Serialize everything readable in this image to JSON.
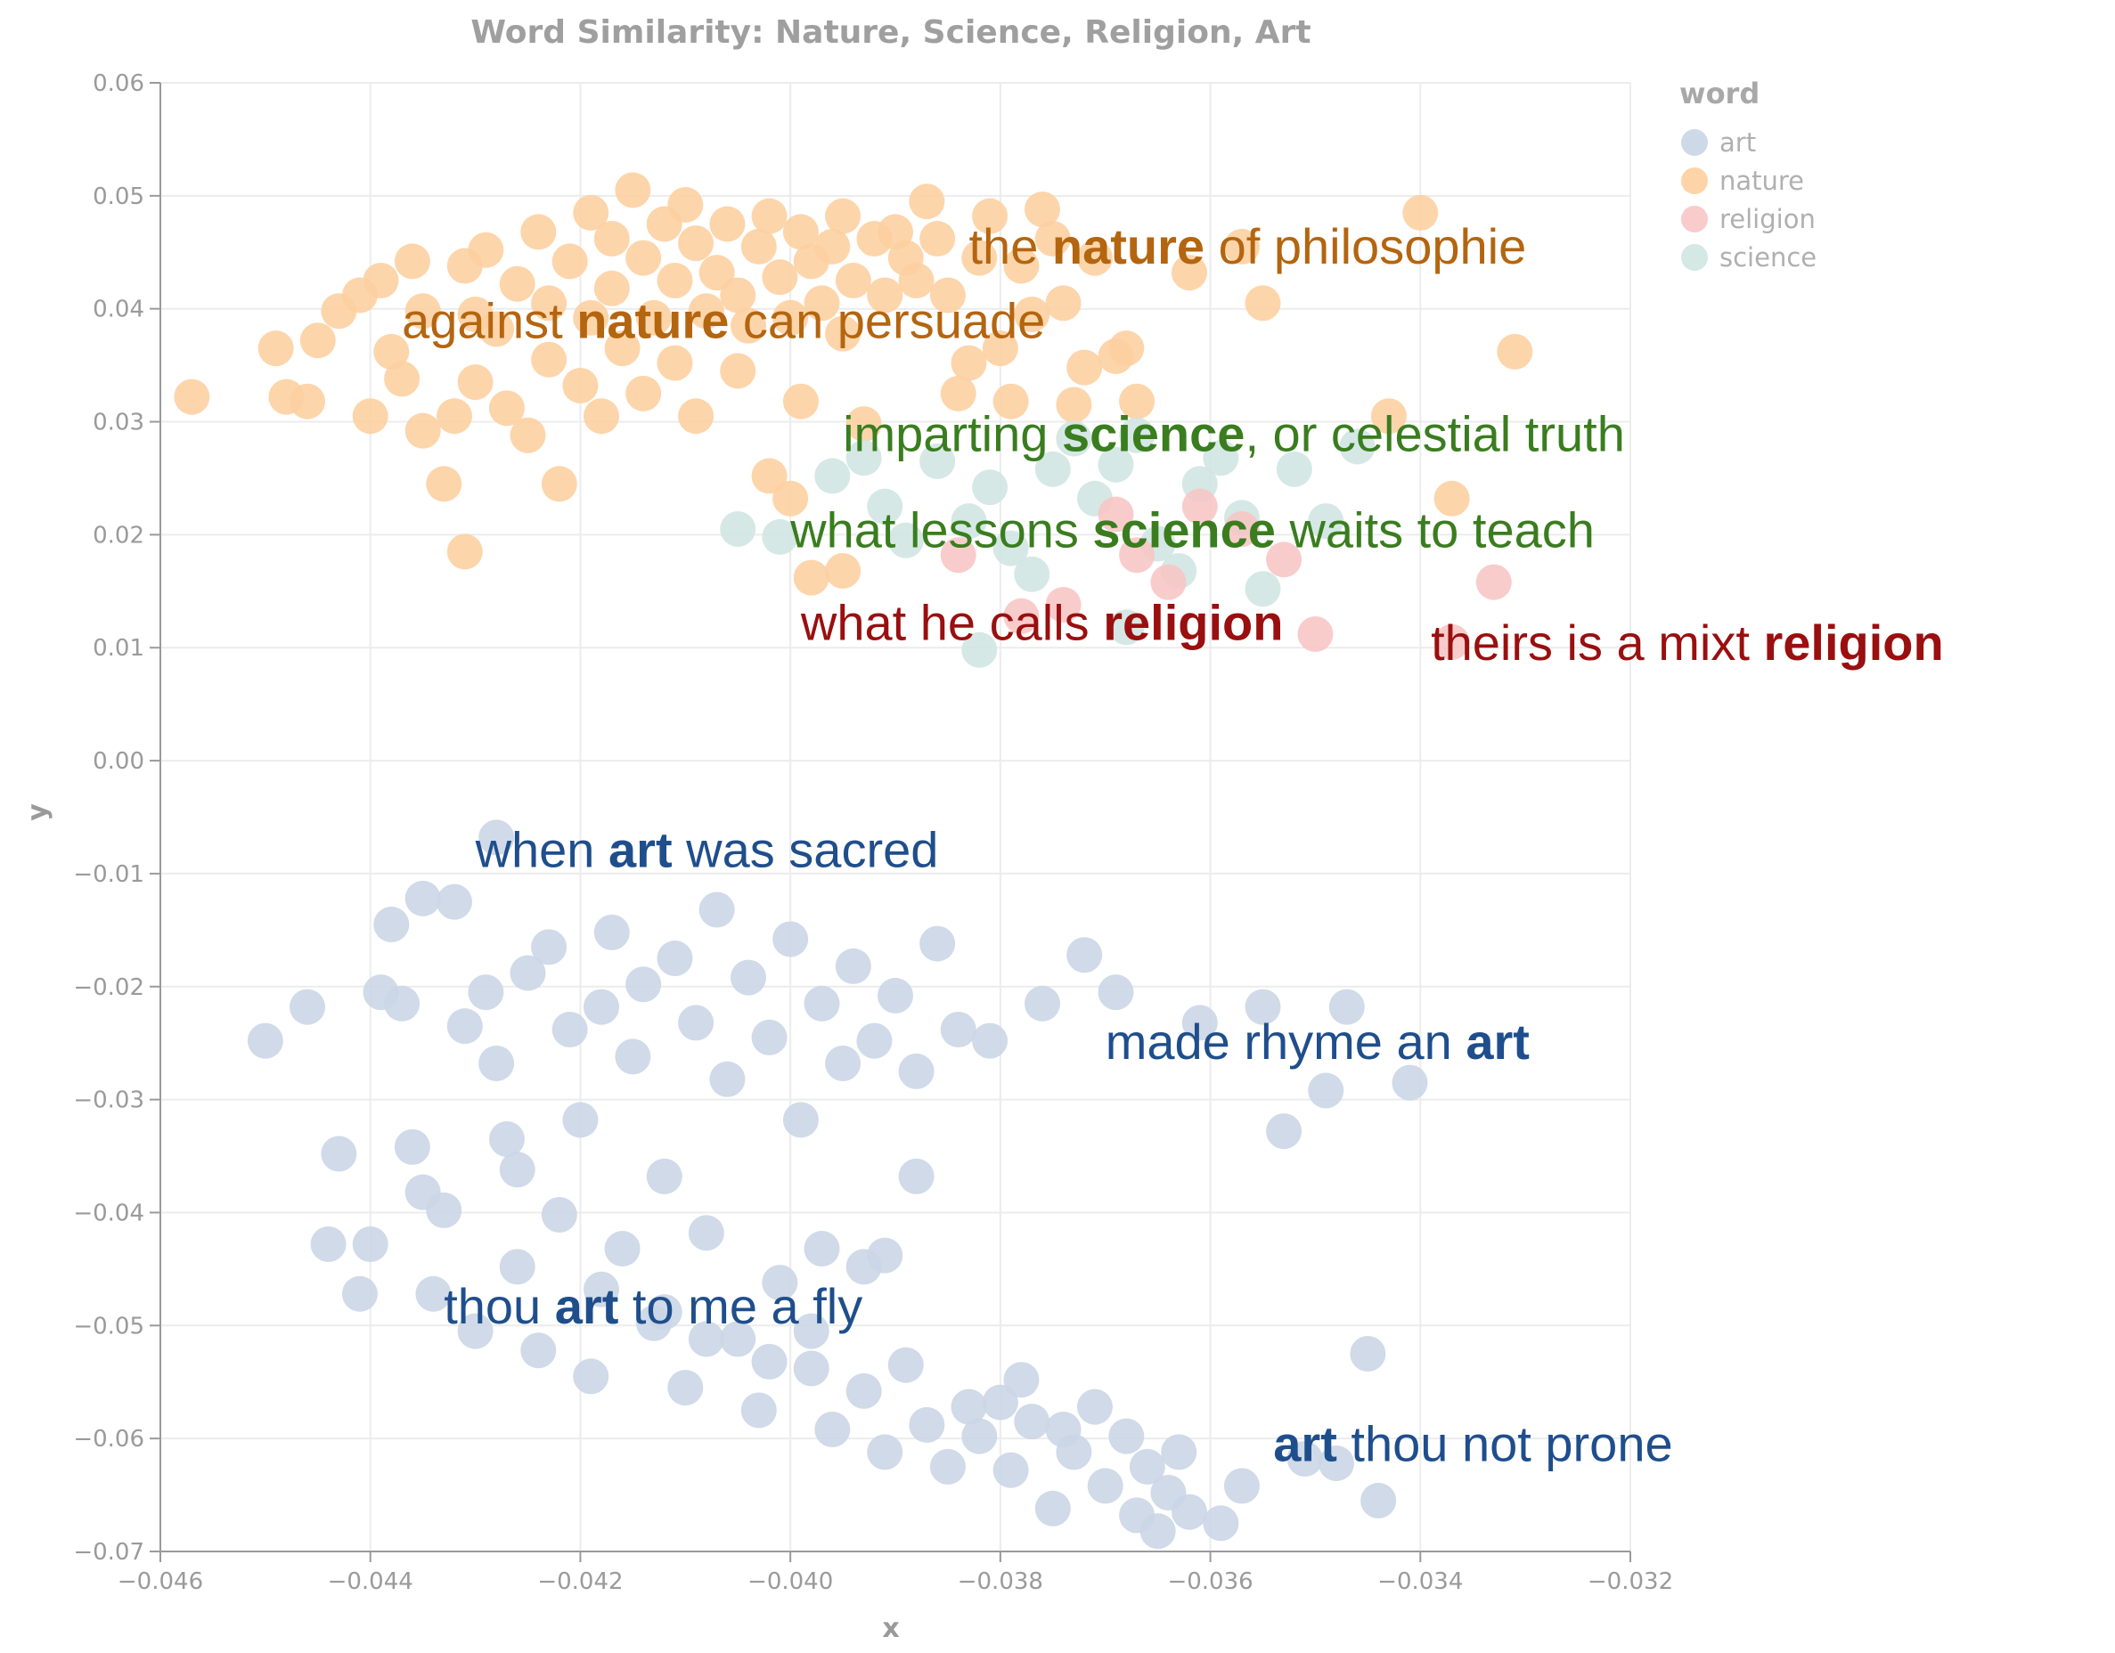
{
  "chart_data": {
    "type": "scatter",
    "title": "Word Similarity: Nature, Science, Religion, Art",
    "xlabel": "x",
    "ylabel": "y",
    "xlim": [
      -0.046,
      -0.032
    ],
    "ylim": [
      -0.07,
      0.06
    ],
    "x_ticks": [
      "−0.046",
      "−0.044",
      "−0.042",
      "−0.040",
      "−0.038",
      "−0.036",
      "−0.034",
      "−0.032"
    ],
    "y_ticks": [
      "0.06",
      "0.05",
      "0.04",
      "0.03",
      "0.02",
      "0.01",
      "0.00",
      "−0.01",
      "−0.02",
      "−0.03",
      "−0.04",
      "−0.05",
      "−0.06",
      "−0.07"
    ],
    "grid": true,
    "legend": {
      "title": "word",
      "placement": "top-right",
      "entries": [
        "art",
        "nature",
        "religion",
        "science"
      ]
    },
    "colors": {
      "art": "#c9d5e5",
      "nature": "#fdcf9f",
      "religion": "#f8c5c5",
      "science": "#cfe5e1",
      "art_text": "#1f4e8c",
      "nature_text": "#b4650f",
      "religion_text": "#9a0f0f",
      "science_text": "#3a7d1f"
    },
    "series": [
      {
        "name": "nature",
        "points": [
          [
            -0.0457,
            0.0322
          ],
          [
            -0.0449,
            0.0365
          ],
          [
            -0.0448,
            0.0322
          ],
          [
            -0.0446,
            0.0318
          ],
          [
            -0.0445,
            0.0372
          ],
          [
            -0.0443,
            0.0398
          ],
          [
            -0.0441,
            0.0412
          ],
          [
            -0.044,
            0.0305
          ],
          [
            -0.0439,
            0.0425
          ],
          [
            -0.0438,
            0.0362
          ],
          [
            -0.0437,
            0.0338
          ],
          [
            -0.0436,
            0.0442
          ],
          [
            -0.0435,
            0.0292
          ],
          [
            -0.0435,
            0.0398
          ],
          [
            -0.0433,
            0.0245
          ],
          [
            -0.0432,
            0.0305
          ],
          [
            -0.0431,
            0.0438
          ],
          [
            -0.043,
            0.0395
          ],
          [
            -0.043,
            0.0335
          ],
          [
            -0.0429,
            0.0452
          ],
          [
            -0.0428,
            0.0382
          ],
          [
            -0.0427,
            0.0312
          ],
          [
            -0.0426,
            0.0422
          ],
          [
            -0.0425,
            0.0288
          ],
          [
            -0.0424,
            0.0468
          ],
          [
            -0.0423,
            0.0405
          ],
          [
            -0.0423,
            0.0355
          ],
          [
            -0.0422,
            0.0245
          ],
          [
            -0.0421,
            0.0442
          ],
          [
            -0.042,
            0.0332
          ],
          [
            -0.0419,
            0.0485
          ],
          [
            -0.0419,
            0.0392
          ],
          [
            -0.0418,
            0.0305
          ],
          [
            -0.0417,
            0.0462
          ],
          [
            -0.0417,
            0.0418
          ],
          [
            -0.0416,
            0.0365
          ],
          [
            -0.0415,
            0.0505
          ],
          [
            -0.0414,
            0.0445
          ],
          [
            -0.0414,
            0.0325
          ],
          [
            -0.0413,
            0.0392
          ],
          [
            -0.0412,
            0.0475
          ],
          [
            -0.0411,
            0.0352
          ],
          [
            -0.0411,
            0.0425
          ],
          [
            -0.041,
            0.0492
          ],
          [
            -0.0409,
            0.0305
          ],
          [
            -0.0409,
            0.0458
          ],
          [
            -0.0408,
            0.0398
          ],
          [
            -0.0407,
            0.0432
          ],
          [
            -0.0406,
            0.0475
          ],
          [
            -0.0405,
            0.0345
          ],
          [
            -0.0405,
            0.0412
          ],
          [
            -0.0404,
            0.0385
          ],
          [
            -0.0403,
            0.0455
          ],
          [
            -0.0402,
            0.0482
          ],
          [
            -0.0402,
            0.0252
          ],
          [
            -0.0401,
            0.0428
          ],
          [
            -0.04,
            0.0392
          ],
          [
            -0.0399,
            0.0468
          ],
          [
            -0.0399,
            0.0318
          ],
          [
            -0.0398,
            0.0442
          ],
          [
            -0.0397,
            0.0405
          ],
          [
            -0.0396,
            0.0455
          ],
          [
            -0.0395,
            0.0482
          ],
          [
            -0.0395,
            0.0378
          ],
          [
            -0.0394,
            0.0425
          ],
          [
            -0.0393,
            0.0298
          ],
          [
            -0.0392,
            0.0462
          ],
          [
            -0.0391,
            0.0412
          ],
          [
            -0.039,
            0.0468
          ],
          [
            -0.0389,
            0.0445
          ],
          [
            -0.0388,
            0.0425
          ],
          [
            -0.0387,
            0.0495
          ],
          [
            -0.0386,
            0.0462
          ],
          [
            -0.0385,
            0.0412
          ],
          [
            -0.0384,
            0.0325
          ],
          [
            -0.0383,
            0.0352
          ],
          [
            -0.0382,
            0.0445
          ],
          [
            -0.0381,
            0.0482
          ],
          [
            -0.038,
            0.0365
          ],
          [
            -0.0379,
            0.0318
          ],
          [
            -0.0378,
            0.0438
          ],
          [
            -0.0377,
            0.0395
          ],
          [
            -0.0376,
            0.0488
          ],
          [
            -0.0375,
            0.0462
          ],
          [
            -0.0374,
            0.0405
          ],
          [
            -0.0373,
            0.0315
          ],
          [
            -0.0372,
            0.0348
          ],
          [
            -0.0371,
            0.0445
          ],
          [
            -0.0369,
            0.0358
          ],
          [
            -0.0368,
            0.0365
          ],
          [
            -0.0367,
            0.0318
          ],
          [
            -0.0362,
            0.0432
          ],
          [
            -0.0357,
            0.0455
          ],
          [
            -0.0355,
            0.0405
          ],
          [
            -0.0343,
            0.0305
          ],
          [
            -0.034,
            0.0485
          ],
          [
            -0.0337,
            0.0232
          ],
          [
            -0.0331,
            0.0362
          ],
          [
            -0.0431,
            0.0185
          ],
          [
            -0.04,
            0.0232
          ],
          [
            -0.0398,
            0.0162
          ],
          [
            -0.0395,
            0.0168
          ]
        ]
      },
      {
        "name": "science",
        "points": [
          [
            -0.0405,
            0.0205
          ],
          [
            -0.0401,
            0.0198
          ],
          [
            -0.0396,
            0.0252
          ],
          [
            -0.0393,
            0.0268
          ],
          [
            -0.0391,
            0.0225
          ],
          [
            -0.0389,
            0.0195
          ],
          [
            -0.0386,
            0.0265
          ],
          [
            -0.0383,
            0.0212
          ],
          [
            -0.0381,
            0.0242
          ],
          [
            -0.0379,
            0.0188
          ],
          [
            -0.0377,
            0.0165
          ],
          [
            -0.0375,
            0.0258
          ],
          [
            -0.0373,
            0.0285
          ],
          [
            -0.0371,
            0.0232
          ],
          [
            -0.0369,
            0.0262
          ],
          [
            -0.0367,
            0.0288
          ],
          [
            -0.0365,
            0.0192
          ],
          [
            -0.0363,
            0.0168
          ],
          [
            -0.0361,
            0.0245
          ],
          [
            -0.0359,
            0.0268
          ],
          [
            -0.0357,
            0.0215
          ],
          [
            -0.0355,
            0.0152
          ],
          [
            -0.0352,
            0.0258
          ],
          [
            -0.0349,
            0.0212
          ],
          [
            -0.0346,
            0.0278
          ],
          [
            -0.0382,
            0.0098
          ],
          [
            -0.0368,
            0.0118
          ]
        ]
      },
      {
        "name": "religion",
        "points": [
          [
            -0.0384,
            0.0182
          ],
          [
            -0.0378,
            0.0128
          ],
          [
            -0.0374,
            0.0138
          ],
          [
            -0.0369,
            0.0218
          ],
          [
            -0.0367,
            0.0182
          ],
          [
            -0.0364,
            0.0158
          ],
          [
            -0.0361,
            0.0225
          ],
          [
            -0.0357,
            0.0205
          ],
          [
            -0.0353,
            0.0178
          ],
          [
            -0.035,
            0.0112
          ],
          [
            -0.0337,
            0.0105
          ],
          [
            -0.0333,
            0.0158
          ]
        ]
      },
      {
        "name": "art",
        "points": [
          [
            -0.045,
            -0.0248
          ],
          [
            -0.0446,
            -0.0218
          ],
          [
            -0.0443,
            -0.0348
          ],
          [
            -0.044,
            -0.0428
          ],
          [
            -0.0439,
            -0.0205
          ],
          [
            -0.0438,
            -0.0145
          ],
          [
            -0.0437,
            -0.0215
          ],
          [
            -0.0436,
            -0.0342
          ],
          [
            -0.0435,
            -0.0382
          ],
          [
            -0.0434,
            -0.0472
          ],
          [
            -0.0433,
            -0.0398
          ],
          [
            -0.0432,
            -0.0125
          ],
          [
            -0.0431,
            -0.0235
          ],
          [
            -0.043,
            -0.0505
          ],
          [
            -0.0429,
            -0.0205
          ],
          [
            -0.0428,
            -0.0268
          ],
          [
            -0.0427,
            -0.0335
          ],
          [
            -0.0426,
            -0.0448
          ],
          [
            -0.0425,
            -0.0188
          ],
          [
            -0.0424,
            -0.0522
          ],
          [
            -0.0423,
            -0.0165
          ],
          [
            -0.0422,
            -0.0402
          ],
          [
            -0.0421,
            -0.0238
          ],
          [
            -0.042,
            -0.0318
          ],
          [
            -0.0419,
            -0.0545
          ],
          [
            -0.0418,
            -0.0218
          ],
          [
            -0.0417,
            -0.0152
          ],
          [
            -0.0416,
            -0.0432
          ],
          [
            -0.0415,
            -0.0262
          ],
          [
            -0.0414,
            -0.0198
          ],
          [
            -0.0413,
            -0.0498
          ],
          [
            -0.0412,
            -0.0368
          ],
          [
            -0.0411,
            -0.0175
          ],
          [
            -0.041,
            -0.0555
          ],
          [
            -0.0409,
            -0.0232
          ],
          [
            -0.0408,
            -0.0418
          ],
          [
            -0.0407,
            -0.0132
          ],
          [
            -0.0406,
            -0.0282
          ],
          [
            -0.0405,
            -0.0512
          ],
          [
            -0.0404,
            -0.0192
          ],
          [
            -0.0403,
            -0.0575
          ],
          [
            -0.0402,
            -0.0245
          ],
          [
            -0.0401,
            -0.0462
          ],
          [
            -0.04,
            -0.0158
          ],
          [
            -0.0399,
            -0.0318
          ],
          [
            -0.0398,
            -0.0538
          ],
          [
            -0.0397,
            -0.0215
          ],
          [
            -0.0396,
            -0.0592
          ],
          [
            -0.0395,
            -0.0268
          ],
          [
            -0.0394,
            -0.0182
          ],
          [
            -0.0393,
            -0.0558
          ],
          [
            -0.0392,
            -0.0248
          ],
          [
            -0.0391,
            -0.0612
          ],
          [
            -0.039,
            -0.0208
          ],
          [
            -0.0389,
            -0.0535
          ],
          [
            -0.0388,
            -0.0275
          ],
          [
            -0.0387,
            -0.0588
          ],
          [
            -0.0386,
            -0.0162
          ],
          [
            -0.0385,
            -0.0625
          ],
          [
            -0.0384,
            -0.0238
          ],
          [
            -0.0383,
            -0.0572
          ],
          [
            -0.0382,
            -0.0598
          ],
          [
            -0.0381,
            -0.0248
          ],
          [
            -0.038,
            -0.0568
          ],
          [
            -0.0379,
            -0.0628
          ],
          [
            -0.0378,
            -0.0548
          ],
          [
            -0.0377,
            -0.0585
          ],
          [
            -0.0376,
            -0.0215
          ],
          [
            -0.0375,
            -0.0662
          ],
          [
            -0.0374,
            -0.0592
          ],
          [
            -0.0373,
            -0.0612
          ],
          [
            -0.0372,
            -0.0172
          ],
          [
            -0.0371,
            -0.0572
          ],
          [
            -0.037,
            -0.0642
          ],
          [
            -0.0369,
            -0.0205
          ],
          [
            -0.0368,
            -0.0598
          ],
          [
            -0.0367,
            -0.0668
          ],
          [
            -0.0366,
            -0.0625
          ],
          [
            -0.0365,
            -0.0682
          ],
          [
            -0.0364,
            -0.0648
          ],
          [
            -0.0363,
            -0.0612
          ],
          [
            -0.0362,
            -0.0665
          ],
          [
            -0.0361,
            -0.0232
          ],
          [
            -0.0359,
            -0.0675
          ],
          [
            -0.0357,
            -0.0642
          ],
          [
            -0.0355,
            -0.0218
          ],
          [
            -0.0353,
            -0.0328
          ],
          [
            -0.0351,
            -0.0618
          ],
          [
            -0.0349,
            -0.0292
          ],
          [
            -0.0348,
            -0.0622
          ],
          [
            -0.0347,
            -0.0218
          ],
          [
            -0.0345,
            -0.0525
          ],
          [
            -0.0344,
            -0.0655
          ],
          [
            -0.0341,
            -0.0285
          ],
          [
            -0.0428,
            -0.0068
          ],
          [
            -0.0435,
            -0.0122
          ],
          [
            -0.0444,
            -0.0428
          ],
          [
            -0.0441,
            -0.0472
          ],
          [
            -0.0426,
            -0.0362
          ],
          [
            -0.0418,
            -0.0468
          ],
          [
            -0.0412,
            -0.0488
          ],
          [
            -0.0408,
            -0.0512
          ],
          [
            -0.0402,
            -0.0532
          ],
          [
            -0.0398,
            -0.0505
          ],
          [
            -0.0393,
            -0.0448
          ],
          [
            -0.0388,
            -0.0368
          ],
          [
            -0.0391,
            -0.0438
          ],
          [
            -0.0397,
            -0.0432
          ]
        ]
      }
    ],
    "annotations": [
      {
        "word": "nature",
        "before": "the ",
        "keyword": "nature",
        "after": " of philosophie",
        "x": -0.0383,
        "y": 0.044
      },
      {
        "word": "nature",
        "before": "against ",
        "keyword": "nature",
        "after": " can persuade",
        "x": -0.0437,
        "y": 0.0374
      },
      {
        "word": "science",
        "before": "imparting ",
        "keyword": "science",
        "after": ", or celestial truth",
        "x": -0.0395,
        "y": 0.0274
      },
      {
        "word": "science",
        "before": "what lessons ",
        "keyword": "science",
        "after": " waits to teach",
        "x": -0.04,
        "y": 0.0189
      },
      {
        "word": "religion",
        "before": "what he calls ",
        "keyword": "religion",
        "after": "",
        "x": -0.0399,
        "y": 0.0107
      },
      {
        "word": "religion",
        "before": "theirs is a mixt ",
        "keyword": "religion",
        "after": "",
        "x": -0.0339,
        "y": 0.0089
      },
      {
        "word": "art",
        "before": "when ",
        "keyword": "art",
        "after": " was sacred",
        "x": -0.043,
        "y": -0.0094
      },
      {
        "word": "art",
        "before": "made rhyme an ",
        "keyword": "art",
        "after": "",
        "x": -0.037,
        "y": -0.0264
      },
      {
        "word": "art",
        "before": "thou ",
        "keyword": "art",
        "after": " to me a fly",
        "x": -0.0433,
        "y": -0.0498
      },
      {
        "word": "art",
        "before": "",
        "keyword": "art",
        "after": " thou not prone",
        "x": -0.0354,
        "y": -0.062
      }
    ]
  }
}
